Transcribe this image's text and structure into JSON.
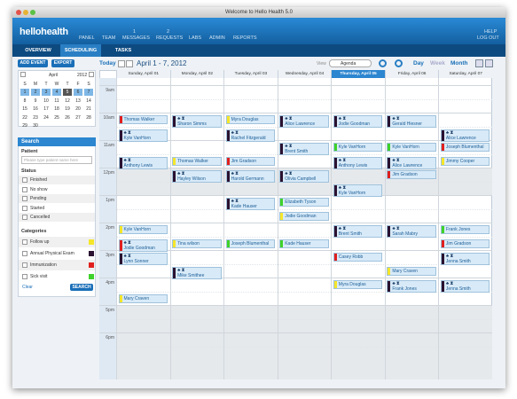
{
  "window": {
    "title": "Welcome to Hello Health 5.0"
  },
  "header": {
    "logo": "hellohealth",
    "nav": [
      {
        "label": "PANEL"
      },
      {
        "label": "TEAM"
      },
      {
        "label": "MESSAGES",
        "badge": "1"
      },
      {
        "label": "REQUESTS",
        "badge": "2"
      },
      {
        "label": "LABS"
      },
      {
        "label": "ADMIN"
      },
      {
        "label": "REPORTS"
      }
    ],
    "right": [
      "HELP",
      "LOG OUT"
    ]
  },
  "tabs": [
    "OVERVIEW",
    "SCHEDULING",
    "TASKS"
  ],
  "sidebar": {
    "buttons": [
      "ADD EVENT",
      "EXPORT"
    ],
    "mini_calendar": {
      "month": "April",
      "year": "2012",
      "weekdays": [
        "S",
        "M",
        "T",
        "W",
        "T",
        "F",
        "S"
      ],
      "weeks": [
        [
          "1",
          "2",
          "3",
          "4",
          "5",
          "6",
          "7"
        ],
        [
          "8",
          "9",
          "10",
          "11",
          "12",
          "13",
          "14"
        ],
        [
          "15",
          "16",
          "17",
          "18",
          "19",
          "20",
          "21"
        ],
        [
          "22",
          "23",
          "24",
          "25",
          "26",
          "27",
          "28"
        ],
        [
          "29",
          "30"
        ]
      ]
    },
    "search": {
      "title": "Search",
      "patient_label": "Patient",
      "placeholder": "Please type patient name here",
      "status_label": "Status",
      "statuses": [
        "Finished",
        "No show",
        "Pending",
        "Started",
        "Cancelled"
      ],
      "categories_label": "Categories",
      "categories": [
        {
          "name": "Follow up",
          "color": "#f5e62a"
        },
        {
          "name": "Annual Physical Exam",
          "color": "#2a1230"
        },
        {
          "name": "Immunization",
          "color": "#e0201e"
        },
        {
          "name": "Sick visit",
          "color": "#3fd22a"
        }
      ],
      "clear": "Clear",
      "submit": "SEARCH"
    }
  },
  "toolbar": {
    "today": "Today",
    "range": "April 1 - 7, 2012",
    "view_label": "View",
    "view": "Agenda",
    "modes": [
      "Day",
      "Week",
      "Month"
    ]
  },
  "calendar": {
    "times": [
      "9am",
      "10am",
      "11am",
      "12pm",
      "1pm",
      "2pm",
      "3pm",
      "4pm",
      "5pm",
      "6pm"
    ],
    "days": [
      {
        "header": "Sunday, April 01",
        "events": [
          {
            "label": "Thomas Walker",
            "color": "#e0201e"
          },
          {
            "label": "Kyle VanHorn",
            "color": "#2a1230"
          },
          {
            "label": "Anthony Lewis",
            "color": "#2a1230"
          },
          {
            "label": "Kyle VanHorn",
            "color": "#f5e62a"
          },
          {
            "label": "Jodie Goodman",
            "color": "#e0201e"
          },
          {
            "label": "Lynn Sonner",
            "color": "#2a1230"
          },
          {
            "label": "Mary Craven",
            "color": "#f5e62a"
          }
        ]
      },
      {
        "header": "Monday, April 02",
        "events": [
          {
            "label": "Sharon Simms",
            "color": "#2a1230"
          },
          {
            "label": "Thomas Walker",
            "color": "#f5e62a"
          },
          {
            "label": "Hayley Wilson",
            "color": "#2a1230"
          },
          {
            "label": "Tina wilson",
            "color": "#f5e62a"
          },
          {
            "label": "Mike Smithee",
            "color": "#2a1230"
          }
        ]
      },
      {
        "header": "Tuesday, April 03",
        "events": [
          {
            "label": "Myra Douglas",
            "color": "#f5e62a"
          },
          {
            "label": "Rachel Fitzgerald",
            "color": "#2a1230"
          },
          {
            "label": "Jim Gradson",
            "color": "#e0201e"
          },
          {
            "label": "Harold Germann",
            "color": "#2a1230"
          },
          {
            "label": "Kade Hauser",
            "color": "#2a1230"
          },
          {
            "label": "Joseph Blumenthal",
            "color": "#3fd22a"
          }
        ]
      },
      {
        "header": "Wednesday, April 04",
        "events": [
          {
            "label": "Alice Lawrence",
            "color": "#2a1230"
          },
          {
            "label": "Brent Smith",
            "color": "#2a1230"
          },
          {
            "label": "Olivia Campbell",
            "color": "#2a1230"
          },
          {
            "label": "Elizabeth Tyson",
            "color": "#3fd22a"
          },
          {
            "label": "Jodie Goodman",
            "color": "#f5e62a"
          },
          {
            "label": "Kade Hauser",
            "color": "#3fd22a"
          }
        ]
      },
      {
        "header": "Thursday, April 05",
        "events": [
          {
            "label": "Jodie Goodman",
            "color": "#2a1230"
          },
          {
            "label": "Kyle VanHorn",
            "color": "#3fd22a"
          },
          {
            "label": "Anthony Lewis",
            "color": "#2a1230"
          },
          {
            "label": "Kyle VanHorn",
            "color": "#2a1230"
          },
          {
            "label": "Brent Smith",
            "color": "#2a1230"
          },
          {
            "label": "Casey Robb",
            "color": "#e0201e"
          },
          {
            "label": "Myra Douglas",
            "color": "#f5e62a"
          }
        ]
      },
      {
        "header": "Friday, April 06",
        "events": [
          {
            "label": "Gerald Hiesner",
            "color": "#2a1230"
          },
          {
            "label": "Kyle VanHorn",
            "color": "#3fd22a"
          },
          {
            "label": "Alice Lawrence",
            "color": "#2a1230"
          },
          {
            "label": "Jim Gradson",
            "color": "#e0201e"
          },
          {
            "label": "Sarah Mabry",
            "color": "#2a1230"
          },
          {
            "label": "Mary Craven",
            "color": "#f5e62a"
          },
          {
            "label": "Frank Jones",
            "color": "#2a1230"
          }
        ]
      },
      {
        "header": "Saturday, April 07",
        "events": [
          {
            "label": "Alice Lawrence",
            "color": "#2a1230"
          },
          {
            "label": "Joseph Blumenthal",
            "color": "#e0201e"
          },
          {
            "label": "Jimmy Cooper",
            "color": "#f5e62a"
          },
          {
            "label": "Frank Jones",
            "color": "#3fd22a"
          },
          {
            "label": "Jim Gradson",
            "color": "#e0201e"
          },
          {
            "label": "Jenna Smith",
            "color": "#2a1230"
          },
          {
            "label": "Jenna Smith",
            "color": "#2a1230"
          }
        ]
      }
    ]
  }
}
